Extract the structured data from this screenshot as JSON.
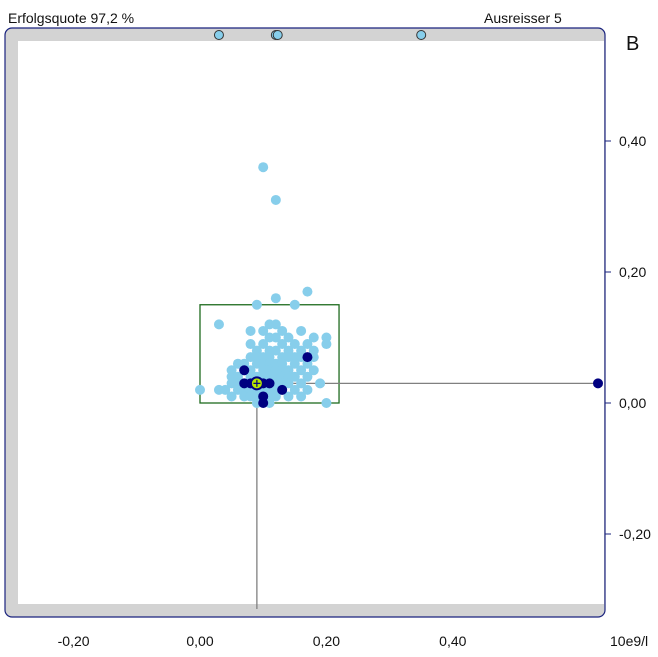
{
  "header": {
    "success_rate": "Erfolgsquote 97,2 %",
    "outliers": "Ausreisser 5",
    "panel_letter": "B"
  },
  "colors": {
    "frame_gray": "#d3d3d3",
    "frame_border": "#1a237e",
    "point_light": "#87ceeb",
    "point_dark": "#000080",
    "target_box": "#1e6b1e",
    "crosshair": "#808080",
    "target_fill": "#b8e600"
  },
  "chart_data": {
    "type": "scatter",
    "title": "",
    "xlabel": "",
    "ylabel": "",
    "x_unit": "10e9/l",
    "xlim": [
      -0.25,
      0.51
    ],
    "ylim": [
      -0.325,
      0.585
    ],
    "x_ticks": [
      {
        "value": -0.2,
        "label": "-0,20"
      },
      {
        "value": 0.0,
        "label": "0,00"
      },
      {
        "value": 0.2,
        "label": "0,20"
      },
      {
        "value": 0.4,
        "label": "0,40"
      }
    ],
    "y_ticks": [
      {
        "value": 0.4,
        "label": "0,40"
      },
      {
        "value": 0.2,
        "label": "0,20"
      },
      {
        "value": 0.0,
        "label": "0,00"
      },
      {
        "value": -0.2,
        "label": "-0,20"
      }
    ],
    "grid": false,
    "target_box": {
      "x0": 0.0,
      "x1": 0.22,
      "y0": 0.0,
      "y1": 0.15
    },
    "target_point": {
      "x": 0.09,
      "y": 0.03
    },
    "outliers_top": [
      0.03,
      0.12,
      0.123,
      0.35
    ],
    "outliers_right": [
      {
        "x": 0.51,
        "y": 0.03
      }
    ],
    "series": [
      {
        "values": [
          [
            0.1,
            0.36
          ],
          [
            0.12,
            0.31
          ],
          [
            0.17,
            0.17
          ],
          [
            0.12,
            0.16
          ],
          [
            0.15,
            0.15
          ],
          [
            0.09,
            0.15
          ],
          [
            0.03,
            0.12
          ],
          [
            0.11,
            0.12
          ],
          [
            0.12,
            0.12
          ],
          [
            0.13,
            0.11
          ],
          [
            0.16,
            0.11
          ],
          [
            0.1,
            0.11
          ],
          [
            0.08,
            0.11
          ],
          [
            0.11,
            0.1
          ],
          [
            0.12,
            0.1
          ],
          [
            0.14,
            0.1
          ],
          [
            0.18,
            0.1
          ],
          [
            0.2,
            0.1
          ],
          [
            0.08,
            0.09
          ],
          [
            0.1,
            0.09
          ],
          [
            0.13,
            0.09
          ],
          [
            0.15,
            0.09
          ],
          [
            0.17,
            0.09
          ],
          [
            0.2,
            0.09
          ],
          [
            0.09,
            0.08
          ],
          [
            0.11,
            0.08
          ],
          [
            0.12,
            0.08
          ],
          [
            0.14,
            0.08
          ],
          [
            0.16,
            0.08
          ],
          [
            0.18,
            0.08
          ],
          [
            0.08,
            0.07
          ],
          [
            0.09,
            0.07
          ],
          [
            0.1,
            0.07
          ],
          [
            0.11,
            0.07
          ],
          [
            0.13,
            0.07
          ],
          [
            0.14,
            0.07
          ],
          [
            0.15,
            0.07
          ],
          [
            0.16,
            0.07
          ],
          [
            0.18,
            0.07
          ],
          [
            0.06,
            0.06
          ],
          [
            0.07,
            0.06
          ],
          [
            0.09,
            0.06
          ],
          [
            0.1,
            0.06
          ],
          [
            0.11,
            0.06
          ],
          [
            0.12,
            0.06
          ],
          [
            0.13,
            0.06
          ],
          [
            0.15,
            0.06
          ],
          [
            0.17,
            0.06
          ],
          [
            0.05,
            0.05
          ],
          [
            0.07,
            0.05
          ],
          [
            0.08,
            0.05
          ],
          [
            0.1,
            0.05
          ],
          [
            0.11,
            0.05
          ],
          [
            0.12,
            0.05
          ],
          [
            0.13,
            0.05
          ],
          [
            0.14,
            0.05
          ],
          [
            0.16,
            0.05
          ],
          [
            0.18,
            0.05
          ],
          [
            0.05,
            0.04
          ],
          [
            0.06,
            0.04
          ],
          [
            0.08,
            0.04
          ],
          [
            0.09,
            0.04
          ],
          [
            0.1,
            0.04
          ],
          [
            0.11,
            0.04
          ],
          [
            0.12,
            0.04
          ],
          [
            0.13,
            0.04
          ],
          [
            0.14,
            0.04
          ],
          [
            0.15,
            0.04
          ],
          [
            0.17,
            0.04
          ],
          [
            0.05,
            0.03
          ],
          [
            0.06,
            0.03
          ],
          [
            0.07,
            0.03
          ],
          [
            0.08,
            0.03
          ],
          [
            0.1,
            0.03
          ],
          [
            0.11,
            0.03
          ],
          [
            0.12,
            0.03
          ],
          [
            0.13,
            0.03
          ],
          [
            0.14,
            0.03
          ],
          [
            0.16,
            0.03
          ],
          [
            0.19,
            0.03
          ],
          [
            0.0,
            0.02
          ],
          [
            0.03,
            0.02
          ],
          [
            0.04,
            0.02
          ],
          [
            0.06,
            0.02
          ],
          [
            0.07,
            0.02
          ],
          [
            0.08,
            0.02
          ],
          [
            0.09,
            0.02
          ],
          [
            0.1,
            0.02
          ],
          [
            0.11,
            0.02
          ],
          [
            0.12,
            0.02
          ],
          [
            0.13,
            0.02
          ],
          [
            0.15,
            0.02
          ],
          [
            0.17,
            0.02
          ],
          [
            0.05,
            0.01
          ],
          [
            0.07,
            0.01
          ],
          [
            0.08,
            0.01
          ],
          [
            0.09,
            0.01
          ],
          [
            0.11,
            0.01
          ],
          [
            0.12,
            0.01
          ],
          [
            0.14,
            0.01
          ],
          [
            0.16,
            0.01
          ],
          [
            0.2,
            0.0
          ],
          [
            0.09,
            0.0
          ],
          [
            0.11,
            0.0
          ]
        ]
      },
      {
        "values": [
          [
            0.07,
            0.05
          ],
          [
            0.17,
            0.07
          ],
          [
            0.07,
            0.03
          ],
          [
            0.08,
            0.03
          ],
          [
            0.1,
            0.03
          ],
          [
            0.11,
            0.03
          ],
          [
            0.13,
            0.02
          ],
          [
            0.1,
            0.01
          ],
          [
            0.1,
            0.0
          ]
        ]
      }
    ]
  }
}
